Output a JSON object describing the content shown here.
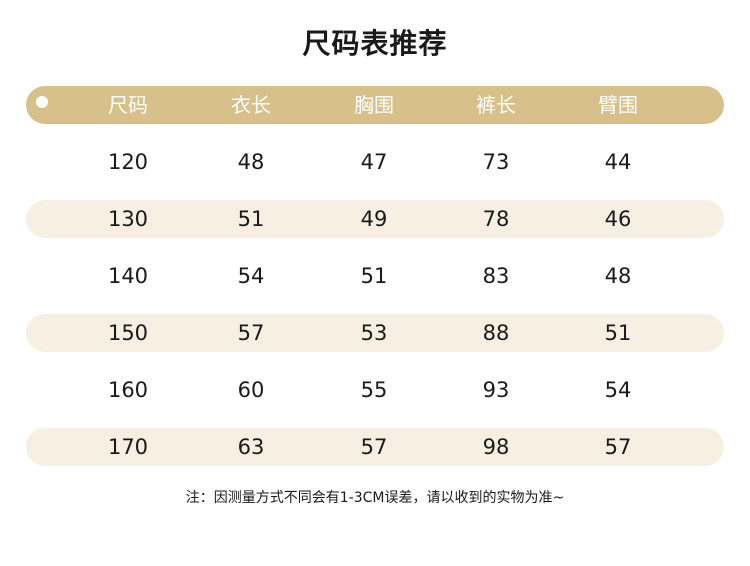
{
  "title": "尺码表推荐",
  "columns": [
    "尺码",
    "衣长",
    "胸围",
    "裤长",
    "臂围"
  ],
  "rows": [
    [
      "120",
      "48",
      "47",
      "73",
      "44"
    ],
    [
      "130",
      "51",
      "49",
      "78",
      "46"
    ],
    [
      "140",
      "54",
      "51",
      "83",
      "48"
    ],
    [
      "150",
      "57",
      "53",
      "88",
      "51"
    ],
    [
      "160",
      "60",
      "55",
      "93",
      "54"
    ],
    [
      "170",
      "63",
      "57",
      "98",
      "57"
    ]
  ],
  "note": "注：因测量方式不同会有1-3CM误差，请以收到的实物为准~",
  "colors": {
    "header": "#d8c08a",
    "stripe": "#f6efe2",
    "text": "#1a1a1a"
  }
}
